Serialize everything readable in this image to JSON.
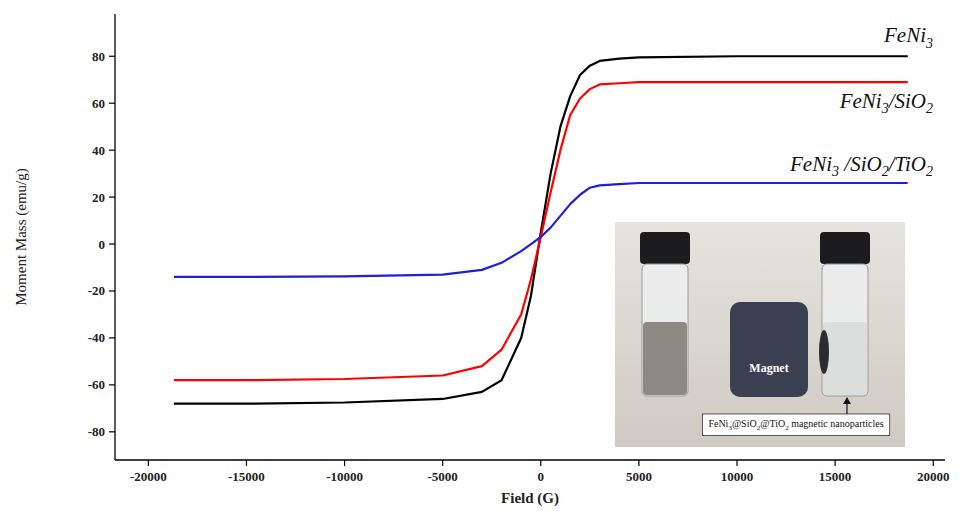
{
  "chart_data": {
    "type": "line",
    "x_label": "Field (G)",
    "y_label": "Moment Mass (emu/g)",
    "x": [
      -18700,
      -15000,
      -10000,
      -5000,
      -3000,
      -2000,
      -1000,
      -500,
      0,
      500,
      1000,
      1500,
      2000,
      2500,
      3000,
      4000,
      5000,
      10000,
      15000,
      18700
    ],
    "series": [
      {
        "name": "FeNi3",
        "color": "#000000",
        "values": [
          -68,
          -68,
          -67.5,
          -66,
          -63,
          -58,
          -40,
          -22,
          5,
          30,
          50,
          63,
          72,
          76,
          78,
          79,
          79.5,
          80,
          80,
          80
        ]
      },
      {
        "name": "FeNi3/SiO2",
        "color": "#ff0000",
        "values": [
          -58,
          -58,
          -57.5,
          -56,
          -52,
          -45,
          -30,
          -15,
          3,
          22,
          40,
          55,
          62,
          66,
          68,
          68.5,
          69,
          69,
          69,
          69
        ]
      },
      {
        "name": "FeNi3 /SiO2/TiO2",
        "color": "#1f1fd6",
        "values": [
          -14,
          -14,
          -13.8,
          -13,
          -11,
          -8,
          -3,
          0,
          3,
          7,
          12,
          17,
          21,
          24,
          25,
          25.5,
          26,
          26,
          26,
          26
        ]
      }
    ],
    "xlim": [
      -21700,
      20600
    ],
    "xticks": [
      -20000,
      -15000,
      -10000,
      -5000,
      0,
      5000,
      10000,
      15000,
      20000
    ],
    "ylim": [
      -92,
      98
    ],
    "yticks": [
      -80,
      -60,
      -40,
      -20,
      0,
      20,
      40,
      60,
      80
    ],
    "grid": false,
    "annotations": [
      "Magnet",
      "FeNi3@SiO2@TiO2 magnetic nanoparticles"
    ]
  }
}
